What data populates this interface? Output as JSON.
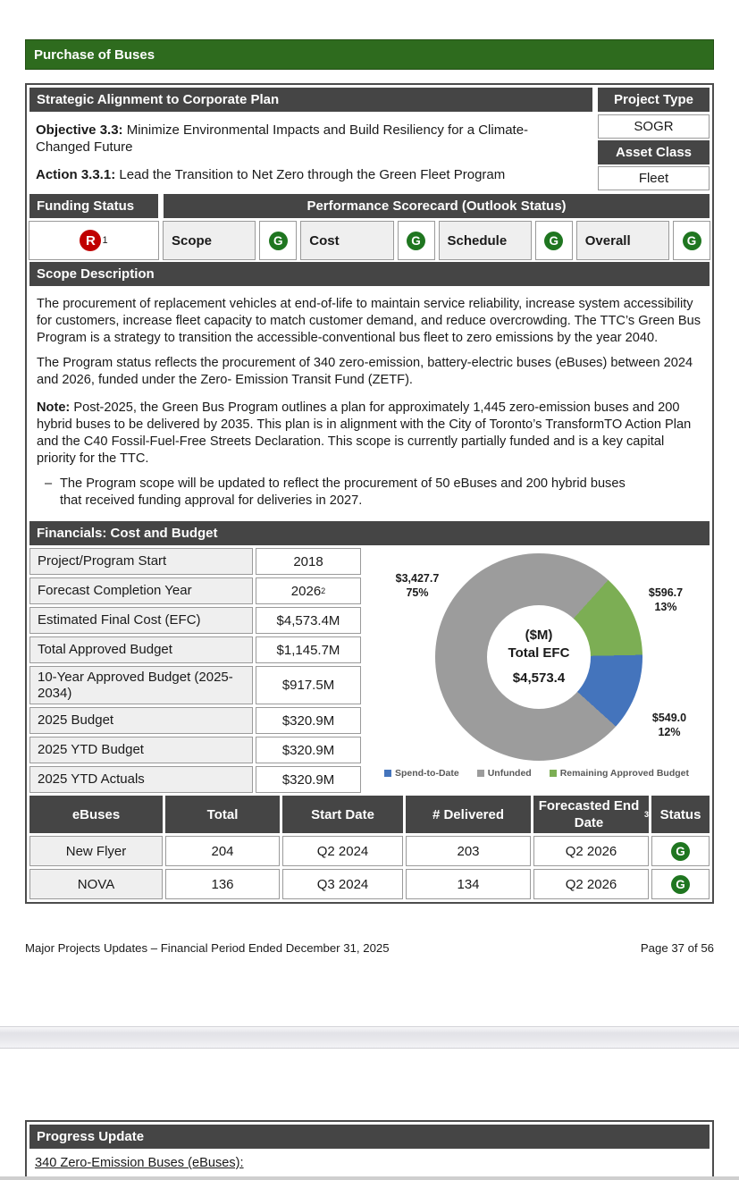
{
  "colors": {
    "title_bar_green": "#2E6B1E",
    "section_header_gray": "#454545",
    "cell_light_gray": "#EFEFEF",
    "status": {
      "G": "#1F7620",
      "R": "#C00000"
    }
  },
  "page1": {
    "title": "Purchase of Buses",
    "strategic": {
      "header": "Strategic Alignment to Corporate Plan",
      "objective_label": "Objective 3.3:",
      "objective_text": " Minimize Environmental Impacts and Build Resiliency for a Climate-Changed Future",
      "action_label": "Action 3.3.1:",
      "action_text": " Lead the Transition to Net Zero through the Green Fleet Program",
      "project_type_label": "Project Type",
      "project_type_value": "SOGR",
      "asset_class_label": "Asset Class",
      "asset_class_value": "Fleet"
    },
    "funding": {
      "label": "Funding Status",
      "status": "R",
      "status_sup": "1",
      "scorecard_header": "Performance Scorecard (Outlook Status)",
      "items": [
        {
          "label": "Scope",
          "status": "G"
        },
        {
          "label": "Cost",
          "status": "G"
        },
        {
          "label": "Schedule",
          "status": "G"
        },
        {
          "label": "Overall",
          "status": "G"
        }
      ]
    },
    "scope": {
      "header": "Scope Description",
      "p1": "The procurement of replacement vehicles at end-of-life to maintain service reliability, increase system accessibility for customers, increase fleet capacity to match customer demand, and reduce overcrowding. The TTC’s Green Bus Program is a strategy to transition the accessible-conventional bus fleet to zero emissions by the year 2040.",
      "p2": "The Program status reflects the procurement of 340 zero-emission, battery-electric buses (eBuses) between 2024 and 2026, funded under the Zero- Emission Transit Fund (ZETF).",
      "note_label": "Note:",
      "note_text": " Post-2025, the Green Bus Program outlines a plan for approximately 1,445 zero-emission buses and 200 hybrid buses to be delivered by 2035. This plan is in alignment with the City of Toronto’s TransformTO Action Plan and the C40 Fossil-Fuel-Free Streets Declaration. This scope is currently partially funded and is a key capital priority for the TTC.",
      "bullet_dash": "–",
      "bullet": "The Program scope will be updated to reflect the procurement of 50 eBuses and 200 hybrid buses that received funding approval for deliveries in 2027."
    },
    "financials": {
      "header": "Financials: Cost and Budget",
      "rows": [
        {
          "label": "Project/Program Start",
          "value": "2018",
          "sup": ""
        },
        {
          "label": "Forecast Completion Year",
          "value": "2026",
          "sup": "2"
        },
        {
          "label": "Estimated Final Cost (EFC)",
          "value": "$4,573.4M",
          "sup": ""
        },
        {
          "label": "Total Approved Budget",
          "value": "$1,145.7M",
          "sup": ""
        },
        {
          "label": "10-Year Approved Budget (2025-2034)",
          "value": "$917.5M",
          "sup": ""
        },
        {
          "label": "2025 Budget",
          "value": "$320.9M",
          "sup": ""
        },
        {
          "label": "2025 YTD Budget",
          "value": "$320.9M",
          "sup": ""
        },
        {
          "label": "2025 YTD Actuals",
          "value": "$320.9M",
          "sup": ""
        }
      ]
    },
    "chart_data": {
      "type": "pie",
      "subtype": "donut",
      "center_units": "($M)",
      "center_label": "Total EFC",
      "center_value": "$4,573.4",
      "start_angle_deg": 42,
      "series": [
        {
          "name": "Spend-to-Date",
          "value": 549.0,
          "pct": 12,
          "color": "#4474BC",
          "label_value": "$549.0",
          "label_pct": "12%"
        },
        {
          "name": "Unfunded",
          "value": 3427.7,
          "pct": 75,
          "color": "#9C9C9C",
          "label_value": "$3,427.7",
          "label_pct": "75%"
        },
        {
          "name": "Remaining Approved Budget",
          "value": 596.7,
          "pct": 13,
          "color": "#7CAE54",
          "label_value": "$596.7",
          "label_pct": "13%"
        }
      ],
      "draw_order": [
        "Remaining Approved Budget",
        "Spend-to-Date",
        "Unfunded"
      ],
      "legend_position": "bottom"
    },
    "ebuses": {
      "headers": [
        {
          "label": "eBuses",
          "sup": ""
        },
        {
          "label": "Total",
          "sup": ""
        },
        {
          "label": "Start Date",
          "sup": ""
        },
        {
          "label": "# Delivered",
          "sup": ""
        },
        {
          "label": "Forecasted End Date",
          "sup": "3"
        },
        {
          "label": "Status",
          "sup": ""
        }
      ],
      "rows": [
        {
          "name": "New Flyer",
          "total": "204",
          "start": "Q2 2024",
          "delivered": "203",
          "end": "Q2 2026",
          "status": "G"
        },
        {
          "name": "NOVA",
          "total": "136",
          "start": "Q3 2024",
          "delivered": "134",
          "end": "Q2 2026",
          "status": "G"
        }
      ]
    },
    "footer": {
      "left": "Major Projects Updates – Financial Period Ended December 31, 2025",
      "right": "Page 37 of 56"
    }
  },
  "page2": {
    "progress_header": "Progress Update",
    "progress_line": "340 Zero-Emission Buses (eBuses):"
  }
}
